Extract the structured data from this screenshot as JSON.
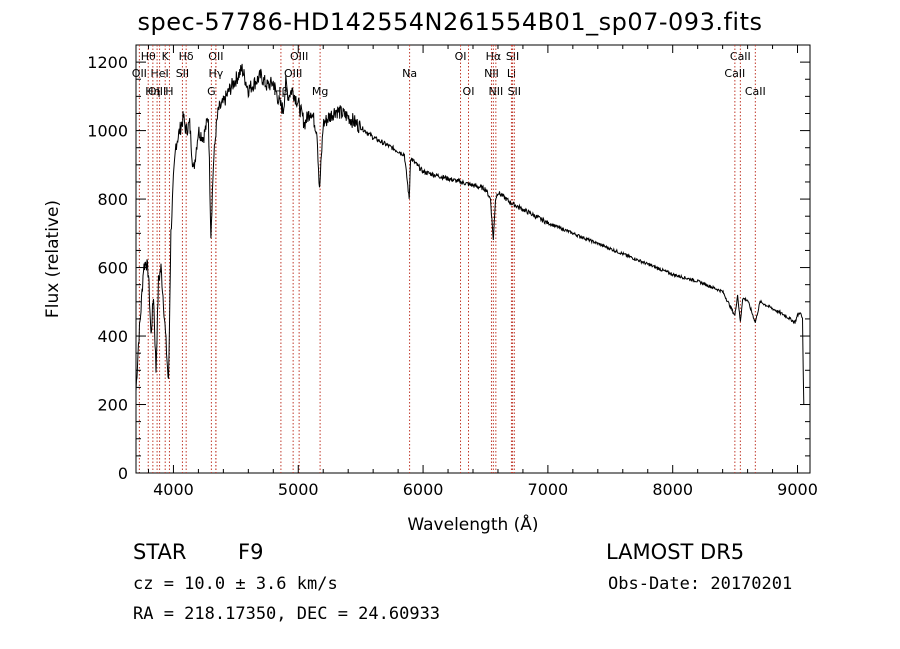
{
  "header": {
    "title": "spec-57786-HD142554N261554B01_sp07-093.fits"
  },
  "info": {
    "obj_class": "STAR",
    "subclass": "F9",
    "survey": "LAMOST DR5",
    "cz": "cz = 10.0 ± 3.6 km/s",
    "obs_date": "Obs-Date: 20170201",
    "radec": "RA = 218.17350, DEC =  24.60933"
  },
  "chart_data": {
    "type": "line",
    "title": "spec-57786-HD142554N261554B01_sp07-093.fits",
    "xlabel": "Wavelength (Å)",
    "ylabel": "Flux (relative)",
    "xlim": [
      3700,
      9100
    ],
    "ylim": [
      0,
      1250
    ],
    "x_ticks": [
      4000,
      5000,
      6000,
      7000,
      8000,
      9000
    ],
    "y_ticks": [
      0,
      200,
      400,
      600,
      800,
      1000,
      1200
    ],
    "grid": false,
    "line_color": "#000000",
    "marker_color": "#c0392b",
    "series": [
      {
        "x": [
          3700,
          3720,
          3740,
          3760,
          3780,
          3800,
          3820,
          3840,
          3860,
          3880,
          3900,
          3920,
          3940,
          3960,
          3980,
          4000,
          4020,
          4050,
          4080,
          4100,
          4130,
          4160,
          4200,
          4240,
          4280,
          4300,
          4320,
          4340,
          4360,
          4400,
          4450,
          4500,
          4550,
          4600,
          4650,
          4700,
          4750,
          4800,
          4850,
          4880,
          4900,
          4920,
          4950,
          5000,
          5050,
          5100,
          5150,
          5170,
          5200,
          5250,
          5300,
          5400,
          5500,
          5600,
          5700,
          5800,
          5850,
          5889,
          5900,
          5950,
          6000,
          6100,
          6200,
          6300,
          6400,
          6500,
          6540,
          6563,
          6580,
          6600,
          6700,
          6800,
          6900,
          7000,
          7200,
          7400,
          7600,
          7800,
          8000,
          8200,
          8400,
          8498,
          8520,
          8542,
          8560,
          8600,
          8662,
          8700,
          8800,
          8900,
          8980,
          9000,
          9020,
          9040,
          9050
        ],
        "y": [
          240,
          380,
          480,
          600,
          620,
          580,
          400,
          520,
          300,
          560,
          600,
          500,
          380,
          260,
          700,
          850,
          960,
          1000,
          1040,
          1000,
          1020,
          880,
          1000,
          980,
          1040,
          700,
          900,
          1000,
          1060,
          1080,
          1120,
          1150,
          1180,
          1120,
          1140,
          1160,
          1130,
          1140,
          1080,
          1060,
          1140,
          1100,
          1120,
          1080,
          1020,
          1060,
          1000,
          820,
          1020,
          1040,
          1060,
          1040,
          1010,
          980,
          960,
          940,
          930,
          800,
          920,
          900,
          880,
          870,
          860,
          850,
          840,
          830,
          800,
          680,
          800,
          820,
          790,
          770,
          750,
          730,
          700,
          670,
          640,
          610,
          580,
          560,
          530,
          460,
          520,
          440,
          510,
          505,
          440,
          500,
          480,
          460,
          440,
          460,
          470,
          450,
          200
        ]
      }
    ],
    "lines": [
      {
        "label": "Hθ",
        "x": 3798,
        "row": 0
      },
      {
        "label": "K",
        "x": 3934,
        "row": 0
      },
      {
        "label": "Hδ",
        "x": 4102,
        "row": 0
      },
      {
        "label": "OII",
        "x": 4340,
        "row": 0
      },
      {
        "label": "OIII",
        "x": 5007,
        "row": 0
      },
      {
        "label": "OI",
        "x": 6300,
        "row": 0
      },
      {
        "label": "Hα",
        "x": 6563,
        "row": 0
      },
      {
        "label": "SII",
        "x": 6717,
        "row": 0
      },
      {
        "label": "CaII",
        "x": 8542,
        "row": 0
      },
      {
        "label": "OII",
        "x": 3727,
        "row": 1
      },
      {
        "label": "HeI",
        "x": 3889,
        "row": 1
      },
      {
        "label": "SII",
        "x": 4072,
        "row": 1
      },
      {
        "label": "Hγ",
        "x": 4340,
        "row": 1
      },
      {
        "label": "OIII",
        "x": 4959,
        "row": 1
      },
      {
        "label": "Na",
        "x": 5892,
        "row": 1
      },
      {
        "label": "NII",
        "x": 6548,
        "row": 1
      },
      {
        "label": "Li",
        "x": 6708,
        "row": 1
      },
      {
        "label": "CaII",
        "x": 8498,
        "row": 1
      },
      {
        "label": "OIII",
        "x": 3869,
        "row": 2
      },
      {
        "label": "Hη",
        "x": 3835,
        "row": 2
      },
      {
        "label": "H",
        "x": 3968,
        "row": 2
      },
      {
        "label": "G",
        "x": 4304,
        "row": 2
      },
      {
        "label": "Hβ",
        "x": 4861,
        "row": 2
      },
      {
        "label": "Mg",
        "x": 5175,
        "row": 2
      },
      {
        "label": "OI",
        "x": 6364,
        "row": 2
      },
      {
        "label": "NII",
        "x": 6583,
        "row": 2
      },
      {
        "label": "SII",
        "x": 6731,
        "row": 2
      },
      {
        "label": "CaII",
        "x": 8662,
        "row": 2
      }
    ]
  }
}
